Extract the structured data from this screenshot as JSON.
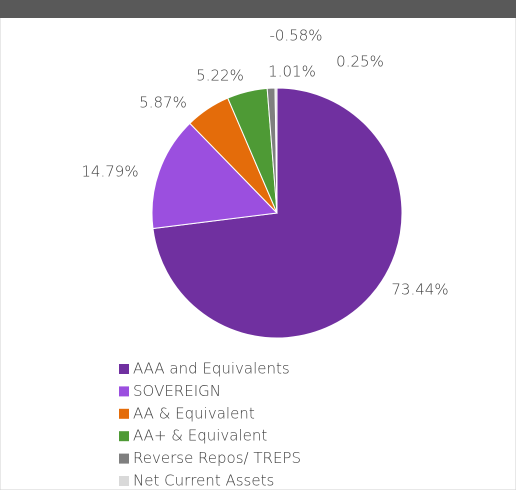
{
  "chart_data": {
    "type": "pie",
    "categories": [
      "AAA and Equivalents",
      "SOVEREIGN",
      "AA & Equivalent",
      "AA+ & Equivalent",
      "Reverse Repos/ TREPS",
      "Net Current Assets",
      null
    ],
    "values": [
      73.44,
      14.79,
      5.87,
      5.22,
      1.01,
      0.25,
      -0.58
    ],
    "value_labels": [
      "73.44%",
      "14.79%",
      "5.87%",
      "5.22%",
      "1.01%",
      "0.25%",
      "-0.58%"
    ],
    "colors": [
      "#7030a0",
      "#9b4fdf",
      "#e46c0a",
      "#4e9a35",
      "#7f7f7f",
      "#d9d9d9",
      "#bfbfbf"
    ],
    "legend": "bottom"
  }
}
